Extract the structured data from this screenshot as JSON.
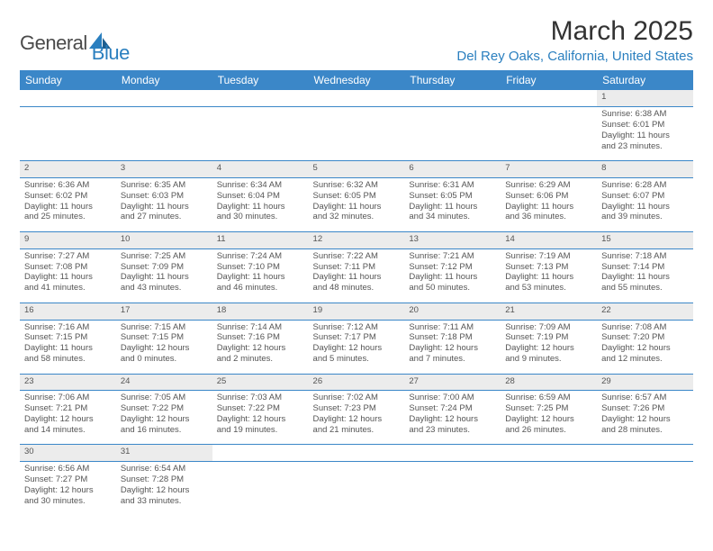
{
  "brand": {
    "text1": "General",
    "text2": "Blue"
  },
  "title": "March 2025",
  "location": "Del Rey Oaks, California, United States",
  "colors": {
    "header_bg": "#3b87c8",
    "header_text": "#ffffff",
    "border": "#3b87c8",
    "daynum_bg": "#ececec",
    "brand_accent": "#2a7fbf",
    "body_text": "#555555"
  },
  "font": {
    "family": "Arial",
    "title_size_pt": 22,
    "location_size_pt": 11,
    "header_size_pt": 9,
    "cell_size_pt": 7
  },
  "daysOfWeek": [
    "Sunday",
    "Monday",
    "Tuesday",
    "Wednesday",
    "Thursday",
    "Friday",
    "Saturday"
  ],
  "weeks": [
    {
      "nums": [
        "",
        "",
        "",
        "",
        "",
        "",
        "1"
      ],
      "cells": [
        null,
        null,
        null,
        null,
        null,
        null,
        {
          "sunrise": "Sunrise: 6:38 AM",
          "sunset": "Sunset: 6:01 PM",
          "day1": "Daylight: 11 hours",
          "day2": "and 23 minutes."
        }
      ]
    },
    {
      "nums": [
        "2",
        "3",
        "4",
        "5",
        "6",
        "7",
        "8"
      ],
      "cells": [
        {
          "sunrise": "Sunrise: 6:36 AM",
          "sunset": "Sunset: 6:02 PM",
          "day1": "Daylight: 11 hours",
          "day2": "and 25 minutes."
        },
        {
          "sunrise": "Sunrise: 6:35 AM",
          "sunset": "Sunset: 6:03 PM",
          "day1": "Daylight: 11 hours",
          "day2": "and 27 minutes."
        },
        {
          "sunrise": "Sunrise: 6:34 AM",
          "sunset": "Sunset: 6:04 PM",
          "day1": "Daylight: 11 hours",
          "day2": "and 30 minutes."
        },
        {
          "sunrise": "Sunrise: 6:32 AM",
          "sunset": "Sunset: 6:05 PM",
          "day1": "Daylight: 11 hours",
          "day2": "and 32 minutes."
        },
        {
          "sunrise": "Sunrise: 6:31 AM",
          "sunset": "Sunset: 6:05 PM",
          "day1": "Daylight: 11 hours",
          "day2": "and 34 minutes."
        },
        {
          "sunrise": "Sunrise: 6:29 AM",
          "sunset": "Sunset: 6:06 PM",
          "day1": "Daylight: 11 hours",
          "day2": "and 36 minutes."
        },
        {
          "sunrise": "Sunrise: 6:28 AM",
          "sunset": "Sunset: 6:07 PM",
          "day1": "Daylight: 11 hours",
          "day2": "and 39 minutes."
        }
      ]
    },
    {
      "nums": [
        "9",
        "10",
        "11",
        "12",
        "13",
        "14",
        "15"
      ],
      "cells": [
        {
          "sunrise": "Sunrise: 7:27 AM",
          "sunset": "Sunset: 7:08 PM",
          "day1": "Daylight: 11 hours",
          "day2": "and 41 minutes."
        },
        {
          "sunrise": "Sunrise: 7:25 AM",
          "sunset": "Sunset: 7:09 PM",
          "day1": "Daylight: 11 hours",
          "day2": "and 43 minutes."
        },
        {
          "sunrise": "Sunrise: 7:24 AM",
          "sunset": "Sunset: 7:10 PM",
          "day1": "Daylight: 11 hours",
          "day2": "and 46 minutes."
        },
        {
          "sunrise": "Sunrise: 7:22 AM",
          "sunset": "Sunset: 7:11 PM",
          "day1": "Daylight: 11 hours",
          "day2": "and 48 minutes."
        },
        {
          "sunrise": "Sunrise: 7:21 AM",
          "sunset": "Sunset: 7:12 PM",
          "day1": "Daylight: 11 hours",
          "day2": "and 50 minutes."
        },
        {
          "sunrise": "Sunrise: 7:19 AM",
          "sunset": "Sunset: 7:13 PM",
          "day1": "Daylight: 11 hours",
          "day2": "and 53 minutes."
        },
        {
          "sunrise": "Sunrise: 7:18 AM",
          "sunset": "Sunset: 7:14 PM",
          "day1": "Daylight: 11 hours",
          "day2": "and 55 minutes."
        }
      ]
    },
    {
      "nums": [
        "16",
        "17",
        "18",
        "19",
        "20",
        "21",
        "22"
      ],
      "cells": [
        {
          "sunrise": "Sunrise: 7:16 AM",
          "sunset": "Sunset: 7:15 PM",
          "day1": "Daylight: 11 hours",
          "day2": "and 58 minutes."
        },
        {
          "sunrise": "Sunrise: 7:15 AM",
          "sunset": "Sunset: 7:15 PM",
          "day1": "Daylight: 12 hours",
          "day2": "and 0 minutes."
        },
        {
          "sunrise": "Sunrise: 7:14 AM",
          "sunset": "Sunset: 7:16 PM",
          "day1": "Daylight: 12 hours",
          "day2": "and 2 minutes."
        },
        {
          "sunrise": "Sunrise: 7:12 AM",
          "sunset": "Sunset: 7:17 PM",
          "day1": "Daylight: 12 hours",
          "day2": "and 5 minutes."
        },
        {
          "sunrise": "Sunrise: 7:11 AM",
          "sunset": "Sunset: 7:18 PM",
          "day1": "Daylight: 12 hours",
          "day2": "and 7 minutes."
        },
        {
          "sunrise": "Sunrise: 7:09 AM",
          "sunset": "Sunset: 7:19 PM",
          "day1": "Daylight: 12 hours",
          "day2": "and 9 minutes."
        },
        {
          "sunrise": "Sunrise: 7:08 AM",
          "sunset": "Sunset: 7:20 PM",
          "day1": "Daylight: 12 hours",
          "day2": "and 12 minutes."
        }
      ]
    },
    {
      "nums": [
        "23",
        "24",
        "25",
        "26",
        "27",
        "28",
        "29"
      ],
      "cells": [
        {
          "sunrise": "Sunrise: 7:06 AM",
          "sunset": "Sunset: 7:21 PM",
          "day1": "Daylight: 12 hours",
          "day2": "and 14 minutes."
        },
        {
          "sunrise": "Sunrise: 7:05 AM",
          "sunset": "Sunset: 7:22 PM",
          "day1": "Daylight: 12 hours",
          "day2": "and 16 minutes."
        },
        {
          "sunrise": "Sunrise: 7:03 AM",
          "sunset": "Sunset: 7:22 PM",
          "day1": "Daylight: 12 hours",
          "day2": "and 19 minutes."
        },
        {
          "sunrise": "Sunrise: 7:02 AM",
          "sunset": "Sunset: 7:23 PM",
          "day1": "Daylight: 12 hours",
          "day2": "and 21 minutes."
        },
        {
          "sunrise": "Sunrise: 7:00 AM",
          "sunset": "Sunset: 7:24 PM",
          "day1": "Daylight: 12 hours",
          "day2": "and 23 minutes."
        },
        {
          "sunrise": "Sunrise: 6:59 AM",
          "sunset": "Sunset: 7:25 PM",
          "day1": "Daylight: 12 hours",
          "day2": "and 26 minutes."
        },
        {
          "sunrise": "Sunrise: 6:57 AM",
          "sunset": "Sunset: 7:26 PM",
          "day1": "Daylight: 12 hours",
          "day2": "and 28 minutes."
        }
      ]
    },
    {
      "nums": [
        "30",
        "31",
        "",
        "",
        "",
        "",
        ""
      ],
      "cells": [
        {
          "sunrise": "Sunrise: 6:56 AM",
          "sunset": "Sunset: 7:27 PM",
          "day1": "Daylight: 12 hours",
          "day2": "and 30 minutes."
        },
        {
          "sunrise": "Sunrise: 6:54 AM",
          "sunset": "Sunset: 7:28 PM",
          "day1": "Daylight: 12 hours",
          "day2": "and 33 minutes."
        },
        null,
        null,
        null,
        null,
        null
      ]
    }
  ]
}
